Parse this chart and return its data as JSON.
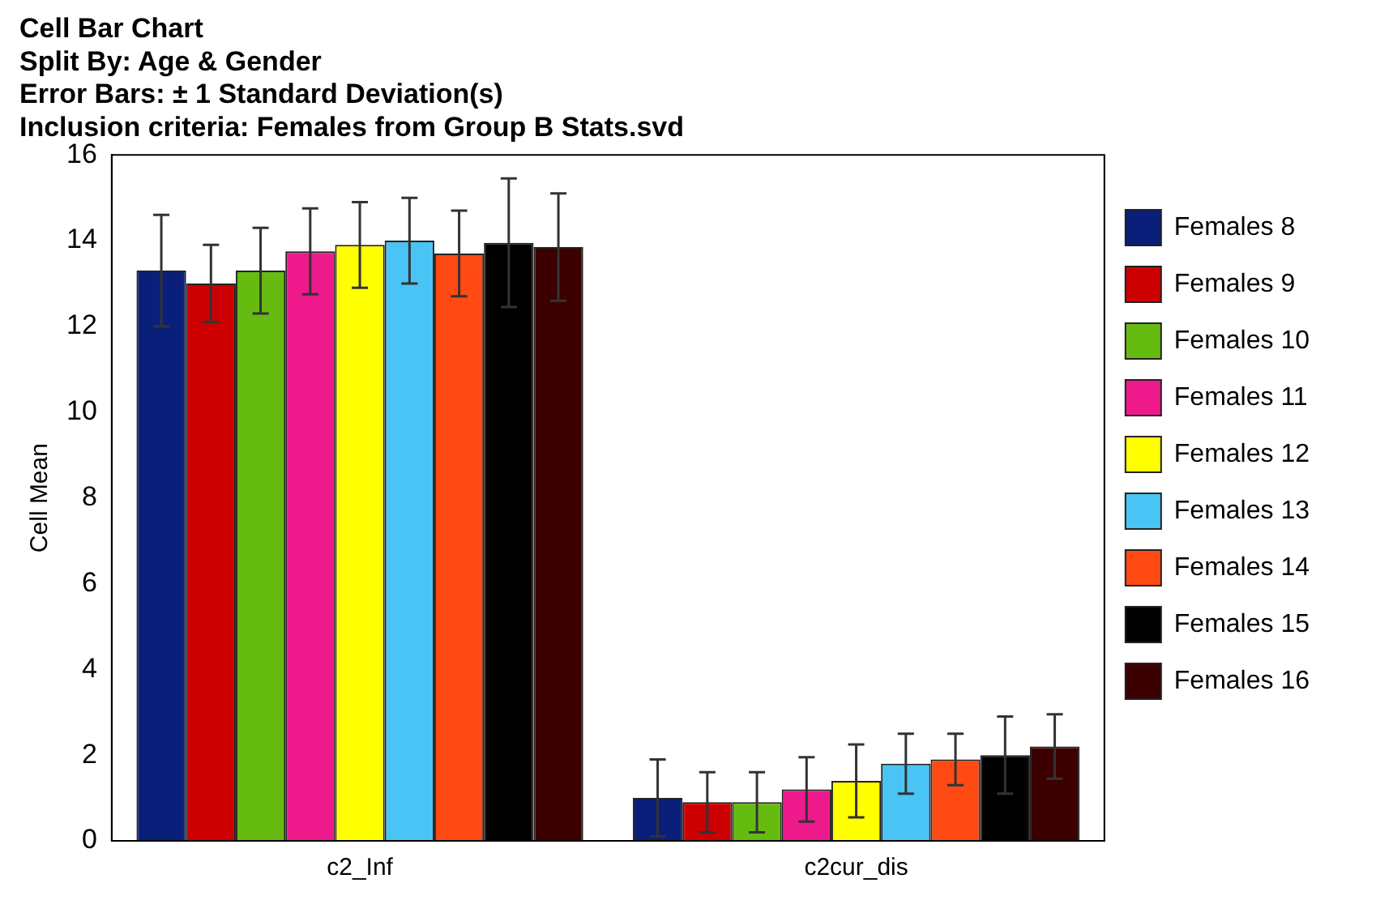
{
  "chart_data": {
    "type": "bar",
    "title": [
      "Cell Bar Chart",
      "Split By: Age & Gender",
      "Error Bars: ± 1 Standard Deviation(s)",
      "Inclusion criteria: Females from Group B Stats.svd"
    ],
    "ylabel": "Cell Mean",
    "categories": [
      "c2_Inf",
      "c2cur_dis"
    ],
    "series": [
      {
        "name": "Females 8",
        "color": "#0a1f7a",
        "values": [
          13.3,
          1.0
        ],
        "errors": [
          1.3,
          0.9
        ]
      },
      {
        "name": "Females 9",
        "color": "#cc0000",
        "values": [
          13.0,
          0.9
        ],
        "errors": [
          0.9,
          0.7
        ]
      },
      {
        "name": "Females 10",
        "color": "#66bb11",
        "values": [
          13.3,
          0.9
        ],
        "errors": [
          1.0,
          0.7
        ]
      },
      {
        "name": "Females 11",
        "color": "#ee1a8c",
        "values": [
          13.75,
          1.2
        ],
        "errors": [
          1.0,
          0.75
        ]
      },
      {
        "name": "Females 12",
        "color": "#ffff00",
        "values": [
          13.9,
          1.4
        ],
        "errors": [
          1.0,
          0.85
        ]
      },
      {
        "name": "Females 13",
        "color": "#4ac4f5",
        "values": [
          14.0,
          1.8
        ],
        "errors": [
          1.0,
          0.7
        ]
      },
      {
        "name": "Females 14",
        "color": "#ff4a14",
        "values": [
          13.7,
          1.9
        ],
        "errors": [
          1.0,
          0.6
        ]
      },
      {
        "name": "Females 15",
        "color": "#000000",
        "values": [
          13.95,
          2.0
        ],
        "errors": [
          1.5,
          0.9
        ]
      },
      {
        "name": "Females 16",
        "color": "#3d0000",
        "values": [
          13.85,
          2.2
        ],
        "errors": [
          1.25,
          0.75
        ]
      }
    ],
    "ylim": [
      0,
      16
    ],
    "yticks": [
      0,
      2,
      4,
      6,
      8,
      10,
      12,
      14,
      16
    ],
    "grid": false,
    "legend": "right"
  }
}
